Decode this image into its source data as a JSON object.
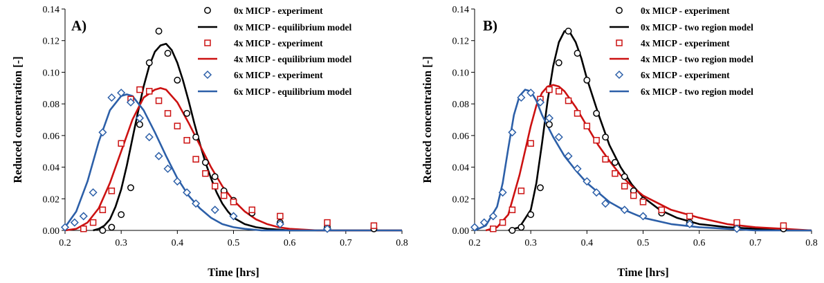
{
  "chart_data": [
    {
      "type": "scatter",
      "panel_label": "A)",
      "xlabel": "Time [hrs]",
      "ylabel": "Reduced concentration [-]",
      "xlim": [
        0.2,
        0.8
      ],
      "ylim": [
        0,
        0.14
      ],
      "xticks": [
        "0.2",
        "0.3",
        "0.4",
        "0.5",
        "0.6",
        "0.7",
        "0.8"
      ],
      "yticks": [
        "0.00",
        "0.02",
        "0.04",
        "0.06",
        "0.08",
        "0.10",
        "0.12",
        "0.14"
      ],
      "grid": false,
      "legend_position": "top-right",
      "series": [
        {
          "name": "0x MICP - experiment",
          "kind": "marker",
          "marker": "circle",
          "color": "#000000",
          "x": [
            0.267,
            0.283,
            0.3,
            0.317,
            0.333,
            0.35,
            0.367,
            0.383,
            0.4,
            0.417,
            0.433,
            0.45,
            0.467,
            0.483,
            0.5,
            0.533,
            0.583,
            0.667,
            0.75
          ],
          "y": [
            0.0,
            0.002,
            0.01,
            0.027,
            0.067,
            0.106,
            0.126,
            0.112,
            0.095,
            0.074,
            0.059,
            0.043,
            0.034,
            0.025,
            0.019,
            0.011,
            0.005,
            0.002,
            0.001
          ]
        },
        {
          "name": "0x MICP - equilibrium model",
          "kind": "line",
          "color": "#000000",
          "x": [
            0.25,
            0.26,
            0.27,
            0.28,
            0.29,
            0.3,
            0.31,
            0.32,
            0.33,
            0.34,
            0.35,
            0.36,
            0.37,
            0.38,
            0.39,
            0.4,
            0.41,
            0.42,
            0.43,
            0.44,
            0.45,
            0.46,
            0.47,
            0.48,
            0.49,
            0.5,
            0.52,
            0.54,
            0.56,
            0.6,
            0.65,
            0.7,
            0.8
          ],
          "y": [
            0.0,
            0.001,
            0.003,
            0.007,
            0.015,
            0.026,
            0.041,
            0.058,
            0.075,
            0.091,
            0.104,
            0.113,
            0.117,
            0.118,
            0.114,
            0.106,
            0.095,
            0.082,
            0.068,
            0.055,
            0.043,
            0.033,
            0.024,
            0.017,
            0.012,
            0.008,
            0.004,
            0.002,
            0.001,
            0.0,
            0.0,
            0.0,
            0.0
          ]
        },
        {
          "name": "4x MICP - experiment",
          "kind": "marker",
          "marker": "square",
          "color": "#cc1111",
          "x": [
            0.233,
            0.25,
            0.267,
            0.283,
            0.3,
            0.317,
            0.333,
            0.35,
            0.367,
            0.383,
            0.4,
            0.417,
            0.433,
            0.45,
            0.467,
            0.483,
            0.5,
            0.533,
            0.583,
            0.667,
            0.75
          ],
          "y": [
            0.001,
            0.005,
            0.013,
            0.025,
            0.055,
            0.083,
            0.089,
            0.088,
            0.082,
            0.074,
            0.066,
            0.057,
            0.045,
            0.036,
            0.028,
            0.022,
            0.018,
            0.013,
            0.009,
            0.005,
            0.003
          ]
        },
        {
          "name": "4x MICP - equilibrium model",
          "kind": "line",
          "color": "#cc1111",
          "x": [
            0.2,
            0.22,
            0.24,
            0.26,
            0.28,
            0.3,
            0.32,
            0.34,
            0.36,
            0.37,
            0.38,
            0.4,
            0.42,
            0.44,
            0.46,
            0.48,
            0.5,
            0.52,
            0.54,
            0.56,
            0.58,
            0.6,
            0.65,
            0.7,
            0.8
          ],
          "y": [
            0.0,
            0.001,
            0.005,
            0.014,
            0.03,
            0.05,
            0.07,
            0.084,
            0.089,
            0.09,
            0.089,
            0.081,
            0.068,
            0.054,
            0.04,
            0.028,
            0.019,
            0.012,
            0.007,
            0.004,
            0.002,
            0.001,
            0.0,
            0.0,
            0.0
          ]
        },
        {
          "name": "6x MICP - experiment",
          "kind": "marker",
          "marker": "diamond",
          "color": "#2c5fa8",
          "x": [
            0.2,
            0.217,
            0.233,
            0.25,
            0.267,
            0.283,
            0.3,
            0.317,
            0.333,
            0.35,
            0.367,
            0.383,
            0.4,
            0.417,
            0.433,
            0.467,
            0.5,
            0.583,
            0.667
          ],
          "y": [
            0.002,
            0.005,
            0.009,
            0.024,
            0.062,
            0.084,
            0.087,
            0.081,
            0.071,
            0.059,
            0.047,
            0.039,
            0.031,
            0.024,
            0.017,
            0.013,
            0.009,
            0.004,
            0.001
          ]
        },
        {
          "name": "6x MICP - equilibrium model",
          "kind": "line",
          "color": "#2c5fa8",
          "x": [
            0.2,
            0.22,
            0.24,
            0.26,
            0.28,
            0.3,
            0.31,
            0.32,
            0.34,
            0.36,
            0.38,
            0.4,
            0.42,
            0.44,
            0.46,
            0.48,
            0.5,
            0.52,
            0.55,
            0.6,
            0.65,
            0.7,
            0.8
          ],
          "y": [
            0.002,
            0.012,
            0.031,
            0.056,
            0.076,
            0.085,
            0.086,
            0.085,
            0.076,
            0.062,
            0.047,
            0.033,
            0.022,
            0.014,
            0.008,
            0.004,
            0.002,
            0.001,
            0.0,
            0.0,
            0.0,
            0.0,
            0.0
          ]
        }
      ]
    },
    {
      "type": "scatter",
      "panel_label": "B)",
      "xlabel": "Time [hrs]",
      "ylabel": "Reduced concentration [-]",
      "xlim": [
        0.2,
        0.8
      ],
      "ylim": [
        0,
        0.14
      ],
      "xticks": [
        "0.2",
        "0.3",
        "0.4",
        "0.5",
        "0.6",
        "0.7",
        "0.8"
      ],
      "yticks": [
        "0.00",
        "0.02",
        "0.04",
        "0.06",
        "0.08",
        "0.10",
        "0.12",
        "0.14"
      ],
      "grid": false,
      "legend_position": "top-right",
      "series": [
        {
          "name": "0x MICP - experiment",
          "kind": "marker",
          "marker": "circle",
          "color": "#000000",
          "x": [
            0.267,
            0.283,
            0.3,
            0.317,
            0.333,
            0.35,
            0.367,
            0.383,
            0.4,
            0.417,
            0.433,
            0.45,
            0.467,
            0.483,
            0.5,
            0.533,
            0.583,
            0.667,
            0.75
          ],
          "y": [
            0.0,
            0.002,
            0.01,
            0.027,
            0.067,
            0.106,
            0.126,
            0.112,
            0.095,
            0.074,
            0.059,
            0.043,
            0.034,
            0.025,
            0.019,
            0.011,
            0.005,
            0.002,
            0.001
          ]
        },
        {
          "name": "0x MICP - two region model",
          "kind": "line",
          "color": "#000000",
          "x": [
            0.26,
            0.28,
            0.3,
            0.31,
            0.32,
            0.33,
            0.34,
            0.35,
            0.36,
            0.37,
            0.38,
            0.39,
            0.4,
            0.42,
            0.44,
            0.46,
            0.48,
            0.5,
            0.53,
            0.56,
            0.6,
            0.65,
            0.7,
            0.75,
            0.8
          ],
          "y": [
            0.0,
            0.002,
            0.013,
            0.03,
            0.055,
            0.082,
            0.104,
            0.119,
            0.126,
            0.125,
            0.119,
            0.109,
            0.096,
            0.074,
            0.054,
            0.04,
            0.029,
            0.021,
            0.013,
            0.008,
            0.004,
            0.002,
            0.001,
            0.0,
            0.0
          ]
        },
        {
          "name": "4x MICP - experiment",
          "kind": "marker",
          "marker": "square",
          "color": "#cc1111",
          "x": [
            0.233,
            0.25,
            0.267,
            0.283,
            0.3,
            0.317,
            0.333,
            0.35,
            0.367,
            0.383,
            0.4,
            0.417,
            0.433,
            0.45,
            0.467,
            0.483,
            0.5,
            0.533,
            0.583,
            0.667,
            0.75
          ],
          "y": [
            0.001,
            0.005,
            0.013,
            0.025,
            0.055,
            0.083,
            0.089,
            0.088,
            0.082,
            0.074,
            0.066,
            0.057,
            0.045,
            0.036,
            0.028,
            0.022,
            0.018,
            0.013,
            0.009,
            0.005,
            0.003
          ]
        },
        {
          "name": "4x MICP - two region model",
          "kind": "line",
          "color": "#cc1111",
          "x": [
            0.22,
            0.24,
            0.26,
            0.28,
            0.3,
            0.31,
            0.32,
            0.33,
            0.34,
            0.35,
            0.36,
            0.38,
            0.4,
            0.42,
            0.44,
            0.46,
            0.48,
            0.5,
            0.55,
            0.6,
            0.65,
            0.7,
            0.75,
            0.8
          ],
          "y": [
            0.0,
            0.002,
            0.01,
            0.035,
            0.066,
            0.079,
            0.087,
            0.091,
            0.092,
            0.091,
            0.088,
            0.078,
            0.066,
            0.054,
            0.044,
            0.035,
            0.028,
            0.022,
            0.013,
            0.008,
            0.004,
            0.002,
            0.001,
            0.0
          ]
        },
        {
          "name": "6x MICP - experiment",
          "kind": "marker",
          "marker": "diamond",
          "color": "#2c5fa8",
          "x": [
            0.2,
            0.217,
            0.233,
            0.25,
            0.267,
            0.283,
            0.3,
            0.317,
            0.333,
            0.35,
            0.367,
            0.383,
            0.4,
            0.417,
            0.433,
            0.467,
            0.5,
            0.583,
            0.667
          ],
          "y": [
            0.002,
            0.005,
            0.009,
            0.024,
            0.062,
            0.084,
            0.087,
            0.081,
            0.071,
            0.059,
            0.047,
            0.039,
            0.031,
            0.024,
            0.017,
            0.013,
            0.009,
            0.004,
            0.001
          ]
        },
        {
          "name": "6x MICP - two region model",
          "kind": "line",
          "color": "#2c5fa8",
          "x": [
            0.2,
            0.22,
            0.24,
            0.25,
            0.26,
            0.27,
            0.28,
            0.29,
            0.3,
            0.31,
            0.32,
            0.34,
            0.36,
            0.38,
            0.4,
            0.42,
            0.44,
            0.46,
            0.48,
            0.5,
            0.55,
            0.6,
            0.65,
            0.7,
            0.8
          ],
          "y": [
            0.0,
            0.003,
            0.015,
            0.03,
            0.052,
            0.073,
            0.085,
            0.089,
            0.088,
            0.082,
            0.073,
            0.059,
            0.047,
            0.038,
            0.03,
            0.024,
            0.018,
            0.014,
            0.011,
            0.008,
            0.004,
            0.002,
            0.001,
            0.0,
            0.0
          ]
        }
      ]
    }
  ]
}
